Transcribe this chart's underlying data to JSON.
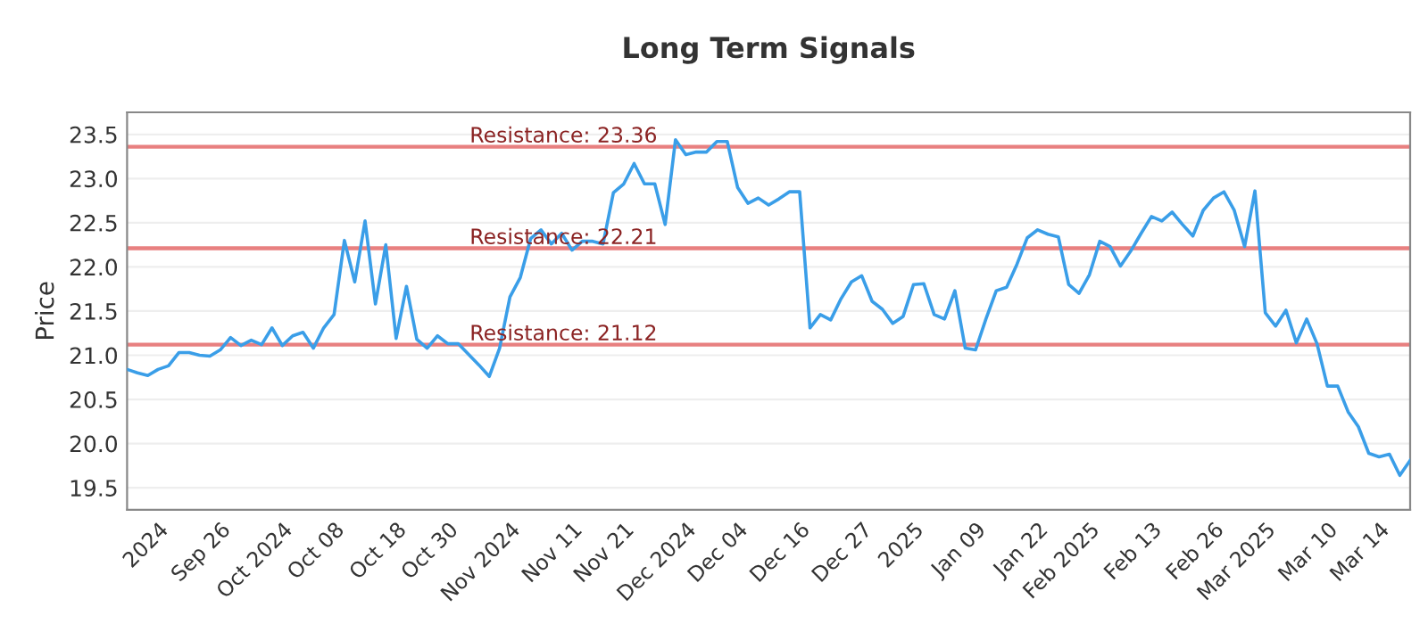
{
  "chart_data": {
    "type": "line",
    "title": "Long Term Signals",
    "ylabel": "Price",
    "categories": [
      null,
      null,
      null,
      "2024",
      null,
      null,
      null,
      null,
      null,
      "Sep 26",
      null,
      null,
      null,
      null,
      null,
      "Oct 2024",
      null,
      null,
      null,
      null,
      "Oct 08",
      null,
      null,
      null,
      null,
      null,
      "Oct 18",
      null,
      null,
      null,
      null,
      "Oct 30",
      null,
      null,
      null,
      null,
      null,
      "Nov 2024",
      null,
      null,
      null,
      null,
      null,
      "Nov 11",
      null,
      null,
      null,
      null,
      "Nov 21",
      null,
      null,
      null,
      null,
      null,
      "Dec 2024",
      null,
      null,
      null,
      null,
      "Dec 04",
      null,
      null,
      null,
      null,
      null,
      "Dec 16",
      null,
      null,
      null,
      null,
      null,
      "Dec 27",
      null,
      null,
      null,
      null,
      "2025",
      null,
      null,
      null,
      null,
      null,
      "Jan 09",
      null,
      null,
      null,
      null,
      null,
      "Jan 22",
      null,
      null,
      null,
      null,
      "Feb 2025",
      null,
      null,
      null,
      null,
      null,
      "Feb 13",
      null,
      null,
      null,
      null,
      null,
      "Feb 26",
      null,
      null,
      null,
      null,
      "Mar 2025",
      null,
      null,
      null,
      null,
      null,
      "Mar 10",
      null,
      null,
      null,
      null,
      "Mar 14",
      null,
      null,
      null
    ],
    "series": [
      {
        "color": "#3a9ee8",
        "values": [
          20.84,
          20.8,
          20.77,
          20.84,
          20.88,
          21.03,
          21.03,
          21.0,
          20.99,
          21.06,
          21.2,
          21.11,
          21.17,
          21.12,
          21.31,
          21.11,
          21.22,
          21.26,
          21.08,
          21.31,
          21.46,
          22.3,
          21.83,
          22.52,
          21.58,
          22.25,
          21.19,
          21.78,
          21.18,
          21.08,
          21.22,
          21.13,
          21.13,
          21.01,
          20.89,
          20.76,
          21.08,
          21.66,
          21.88,
          22.32,
          22.42,
          22.26,
          22.38,
          22.19,
          22.29,
          22.29,
          22.26,
          22.84,
          22.94,
          23.17,
          22.94,
          22.94,
          22.48,
          23.44,
          23.27,
          23.3,
          23.3,
          23.42,
          23.42,
          22.9,
          22.72,
          22.78,
          22.7,
          22.77,
          22.85,
          22.85,
          21.31,
          21.46,
          21.4,
          21.64,
          21.83,
          21.9,
          21.61,
          21.52,
          21.36,
          21.44,
          21.8,
          21.81,
          21.46,
          21.41,
          21.73,
          21.08,
          21.06,
          21.41,
          21.73,
          21.77,
          22.03,
          22.33,
          22.42,
          22.37,
          22.34,
          21.8,
          21.7,
          21.91,
          22.29,
          22.23,
          22.01,
          22.18,
          22.38,
          22.57,
          22.52,
          22.62,
          22.48,
          22.35,
          22.64,
          22.78,
          22.85,
          22.64,
          22.23,
          22.86,
          21.48,
          21.33,
          21.51,
          21.14,
          21.41,
          21.13,
          20.65,
          20.65,
          20.36,
          20.19,
          19.89,
          19.85,
          19.88,
          19.64,
          19.81
        ]
      }
    ],
    "ylim": [
      19.25,
      23.75
    ],
    "yticks": [
      {
        "value": 19.5,
        "label": "19.5"
      },
      {
        "value": 20,
        "label": "20.0"
      },
      {
        "value": 20.5,
        "label": "20.5"
      },
      {
        "value": 21,
        "label": "21.0"
      },
      {
        "value": 21.5,
        "label": "21.5"
      },
      {
        "value": 22,
        "label": "22.0"
      },
      {
        "value": 22.5,
        "label": "22.5"
      },
      {
        "value": 23,
        "label": "23.0"
      },
      {
        "value": 23.5,
        "label": "23.5"
      }
    ],
    "ref_lines": [
      {
        "axis": "y",
        "value": 23.36,
        "label": "Resistance: 23.36",
        "color": "#e88080"
      },
      {
        "axis": "y",
        "value": 22.21,
        "label": "Resistance: 22.21",
        "color": "#e88080"
      },
      {
        "axis": "y",
        "value": 21.12,
        "label": "Resistance: 21.12",
        "color": "#e88080"
      }
    ],
    "grid": "y",
    "marker": "none",
    "line_style": "solid"
  }
}
